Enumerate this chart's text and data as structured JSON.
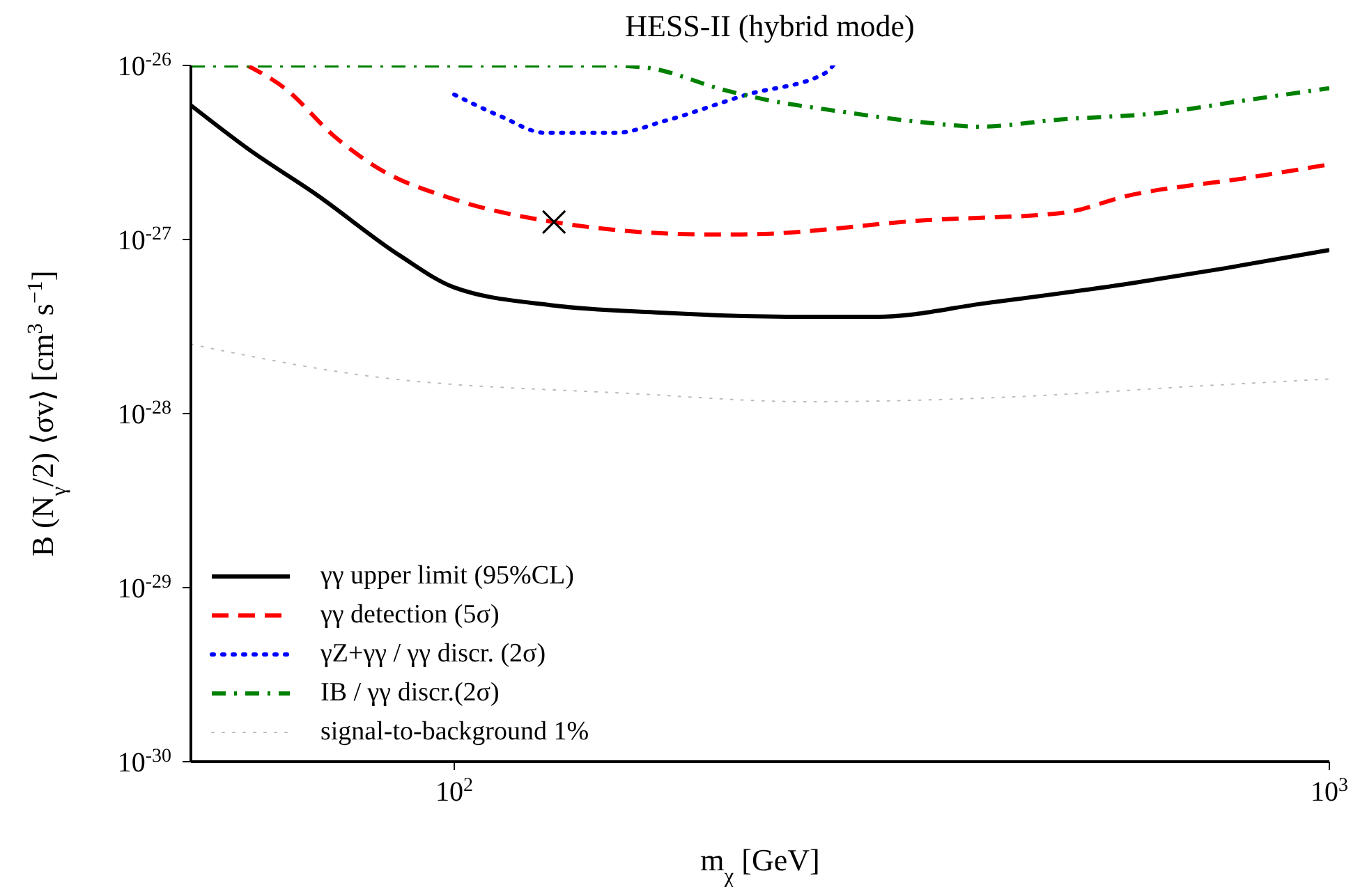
{
  "chart_data": {
    "type": "line",
    "title": "HESS-II (hybrid mode)",
    "xlabel": "m$_{χ}$ [GeV]",
    "ylabel": "B (N$_{γ}$/2) ⟨σv⟩ [cm$^{3}$ s$^{−1}$]",
    "log": "xy",
    "xlim": [
      50,
      1000
    ],
    "xticks": [
      {
        "value": 100,
        "label": "10$^{2}$"
      },
      {
        "value": 1000,
        "label": "10$^{3}$"
      }
    ],
    "ylim": [
      1e-30,
      1e-26
    ],
    "yticks": [
      {
        "value": 1e-30,
        "label": "10$^{-30}$"
      },
      {
        "value": 1e-29,
        "label": "10$^{-29}$"
      },
      {
        "value": 1e-28,
        "label": "10$^{-28}$"
      },
      {
        "value": 1e-27,
        "label": "10$^{-27}$"
      },
      {
        "value": 1e-26,
        "label": "10$^{-26}$"
      }
    ],
    "grid": false,
    "legend": "bottom left",
    "marker": "none",
    "series": [
      {
        "name": "γγ upper limit (95%CL)",
        "color": "#000000",
        "line_style": "solid",
        "x": [
          50,
          58.2,
          69.7,
          86.6,
          100,
          128.7,
          171.8,
          246,
          306,
          404,
          593,
          755,
          1000
        ],
        "values": [
          5.9e-27,
          3.3e-27,
          1.8e-27,
          8.1e-28,
          5.3e-28,
          4.2e-28,
          3.8e-28,
          3.6e-28,
          3.6e-28,
          4.3e-28,
          5.6e-28,
          6.8e-28,
          8.7e-28
        ]
      },
      {
        "name": "γγ detection (5σ)",
        "color": "#ff0000",
        "line_style": "dashed",
        "x": [
          58,
          64,
          73,
          81.5,
          100,
          130,
          194,
          213,
          345,
          494,
          593,
          801,
          1000
        ],
        "values": [
          1e-26,
          7.4e-27,
          3.9e-27,
          2.6e-27,
          1.7e-27,
          1.26e-27,
          1.07e-27,
          1.07e-27,
          1.29e-27,
          1.42e-27,
          1.8e-27,
          2.25e-27,
          2.7e-27
        ]
      },
      {
        "name": "γZ+γγ / γγ discr. (2σ)",
        "color": "#0000ff",
        "line_style": "dotted",
        "x": [
          100,
          113,
          127,
          153,
          174,
          216,
          265,
          271
        ],
        "values": [
          6.8e-27,
          5.1e-27,
          4.1e-27,
          4.1e-27,
          4.8e-27,
          6.8e-27,
          9e-27,
          1e-26
        ]
      },
      {
        "name": "IB / γγ discr.(2σ)",
        "color": "#008000",
        "line_style": "dashdot",
        "x": [
          50,
          150,
          166,
          204,
          229,
          272,
          345,
          398,
          494,
          631,
          801,
          1000
        ],
        "values": [
          1e-26,
          1e-26,
          9.7e-27,
          7.2e-27,
          6.3e-27,
          5.5e-27,
          4.7e-27,
          4.45e-27,
          4.9e-27,
          5.3e-27,
          6.3e-27,
          7.4e-27
        ]
      },
      {
        "name": "signal-to-background 1%",
        "color": "#bbbbbb",
        "line_style": "dotted",
        "x": [
          50,
          78.6,
          161,
          253,
          440,
          710,
          1000
        ],
        "values": [
          2.5e-28,
          1.66e-28,
          1.3e-28,
          1.17e-28,
          1.25e-28,
          1.44e-28,
          1.58e-28
        ]
      },
      {
        "type": "scatter",
        "marker": "cross",
        "color": "#000000",
        "x": [
          130
        ],
        "values": [
          1.26e-27
        ]
      }
    ]
  }
}
